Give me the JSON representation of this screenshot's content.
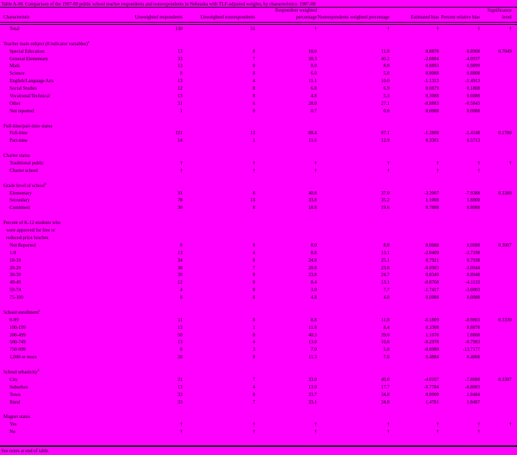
{
  "colors": {
    "background": "#FF00FF",
    "text": "#000000"
  },
  "title": "Table A-88. Comparison of the 1987-88 public school teacher respondents and nonrespondents in Nebraska with TLF-adjusted weights, by characteristics: 1987-88",
  "footer": "See notes at end of table.",
  "columns": [
    "Characteristic",
    "Unweighted respondents",
    "Unweighted nonrespondents",
    "Respondent weighted percentage",
    "Nonrespondents weighted percentage",
    "Estimated bias",
    "Percent relative bias",
    "Significance level"
  ],
  "total_row": {
    "label": "Total",
    "cells": [
      "130",
      "31",
      "†",
      "†",
      "†",
      "†",
      "†"
    ]
  },
  "sections": [
    {
      "header_lines": [
        "Teacher main subject (8 indicator variables)"
      ],
      "sup": "a",
      "rows": [
        {
          "label": "Special Education",
          "cells": [
            "13",
            "8",
            "10.0",
            "11.8",
            "0.8878",
            "0.8908",
            "0.7049"
          ]
        },
        {
          "label": "General Elementary",
          "cells": [
            "33",
            "7",
            "38.3",
            "40.2",
            "-2.0884",
            "-4.0937",
            ""
          ]
        },
        {
          "label": "Math",
          "cells": [
            "13",
            "8",
            "8.0",
            "8.8",
            "0.8893",
            "0.9899",
            ""
          ]
        },
        {
          "label": "Science",
          "cells": [
            "8",
            "8",
            "6.0",
            "5.8",
            "0.8088",
            "0.8808",
            ""
          ]
        },
        {
          "label": "English/Language Arts",
          "cells": [
            "13",
            "4",
            "11.1",
            "10.0",
            "-1.1313",
            "-1.4913",
            ""
          ]
        },
        {
          "label": "Social Studies",
          "cells": [
            "12",
            "8",
            "6.8",
            "6.9",
            "0.0879",
            "0.1808",
            ""
          ]
        },
        {
          "label": "Vocational/Technical",
          "cells": [
            "13",
            "8",
            "4.8",
            "5.3",
            "0.3088",
            "0.6088",
            ""
          ]
        },
        {
          "label": "Other",
          "cells": [
            "31",
            "6",
            "28.0",
            "27.1",
            "-0.8883",
            "-0.5843",
            ""
          ]
        },
        {
          "label": "Not reported",
          "cells": [
            "1",
            "0",
            "0.7",
            "0.8",
            "0.0088",
            "0.0088",
            ""
          ]
        }
      ]
    },
    {
      "header_lines": [
        "Full-time/part-time status"
      ],
      "sup": "",
      "rows": [
        {
          "label": "Full-time",
          "cells": [
            "121",
            "13",
            "88.4",
            "87.1",
            "-1.2808",
            "-1.4148",
            "0.1780"
          ]
        },
        {
          "label": "Part-time",
          "cells": [
            "14",
            "1",
            "11.6",
            "12.9",
            "0.3301",
            "0.5713",
            ""
          ]
        }
      ]
    },
    {
      "header_lines": [
        "Charter status"
      ],
      "sup": "",
      "rows": [
        {
          "label": "Traditional public",
          "cells": [
            "†",
            "†",
            "†",
            "†",
            "†",
            "†",
            "†"
          ]
        },
        {
          "label": "Charter school",
          "cells": [
            "†",
            "†",
            "†",
            "†",
            "†",
            "†",
            ""
          ]
        }
      ]
    },
    {
      "header_lines": [
        "Grade level of school"
      ],
      "sup": "b",
      "rows": [
        {
          "label": "Elementary",
          "cells": [
            "31",
            "8",
            "40.8",
            "37.0",
            "-3.2007",
            "-7.9388",
            "0.3380"
          ]
        },
        {
          "label": "Secondary",
          "cells": [
            "78",
            "13",
            "33.8",
            "35.2",
            "1.1008",
            "1.8800",
            ""
          ]
        },
        {
          "label": "Combined",
          "cells": [
            "30",
            "8",
            "18.8",
            "19.6",
            "0.7888",
            "0.8088",
            ""
          ]
        }
      ]
    },
    {
      "header_lines": [
        "Percent of K-12 students who",
        "were approved for free or",
        "reduced-price lunches"
      ],
      "sup": "",
      "rows": [
        {
          "label": "Not Reported",
          "cells": [
            "8",
            "8",
            "8.0",
            "8.8",
            "0.0088",
            "0.0088",
            "0.3007"
          ]
        },
        {
          "label": "1-9",
          "cells": [
            "13",
            "4",
            "8.8",
            "13.1",
            "-2.0409",
            "-3.7198",
            ""
          ]
        },
        {
          "label": "10-19",
          "cells": [
            "34",
            "8",
            "24.8",
            "25.1",
            "0.7921",
            "0.7938",
            ""
          ]
        },
        {
          "label": "20-29",
          "cells": [
            "30",
            "7",
            "20.8",
            "23.8",
            "-0.8983",
            "-3.0044",
            ""
          ]
        },
        {
          "label": "30-39",
          "cells": [
            "30",
            "8",
            "23.8",
            "24.7",
            "0.8349",
            "0.8948",
            ""
          ]
        },
        {
          "label": "40-49",
          "cells": [
            "12",
            "8",
            "8.4",
            "13.1",
            "-0.8768",
            "-4.1133",
            ""
          ]
        },
        {
          "label": "50-74",
          "cells": [
            "4",
            "8",
            "3.0",
            "7.7",
            "-1.7417",
            "-3.0003",
            ""
          ]
        },
        {
          "label": "75-100",
          "cells": [
            "8",
            "8",
            "4.8",
            "4.8",
            "0.0088",
            "0.0088",
            ""
          ]
        }
      ]
    },
    {
      "header_lines": [
        "School enrollment"
      ],
      "sup": "c",
      "rows": [
        {
          "label": "0-99",
          "cells": [
            "11",
            "8",
            "8.8",
            "11.8",
            "-0.1809",
            "-0.9803",
            "0.3330"
          ]
        },
        {
          "label": "100-199",
          "cells": [
            "13",
            "1",
            "11.8",
            "8.4",
            "0.3308",
            "0.8878",
            ""
          ]
        },
        {
          "label": "200-499",
          "cells": [
            "50",
            "8",
            "40.3",
            "39.0",
            "1.1078",
            "1.8808",
            ""
          ]
        },
        {
          "label": "500-749",
          "cells": [
            "13",
            "4",
            "13.0",
            "10.8",
            "-0.2978",
            "-0.7983",
            ""
          ]
        },
        {
          "label": "750-999",
          "cells": [
            "8",
            "3",
            "7.0",
            "5.8",
            "-0.8980",
            "-13.7177",
            ""
          ]
        },
        {
          "label": "1,000 or more",
          "cells": [
            "38",
            "8",
            "11.3",
            "7.8",
            "0.4884",
            "0.4808",
            ""
          ]
        }
      ]
    },
    {
      "header_lines": [
        "School urbanicity"
      ],
      "sup": "d",
      "rows": [
        {
          "label": "City",
          "cells": [
            "31",
            "7",
            "33.0",
            "40.8",
            "-4.0107",
            "-7.8088",
            "0.3387"
          ]
        },
        {
          "label": "Suburban",
          "cells": [
            "13",
            "4",
            "13.0",
            "17.7",
            "-0.7784",
            "-0.8083",
            ""
          ]
        },
        {
          "label": "Town",
          "cells": [
            "33",
            "8",
            "33.7",
            "34.8",
            "0.8000",
            "1.8484",
            ""
          ]
        },
        {
          "label": "Rural",
          "cells": [
            "33",
            "7",
            "33.1",
            "34.8",
            "1.4781",
            "1.8487",
            ""
          ]
        }
      ]
    },
    {
      "header_lines": [
        "Magnet status"
      ],
      "sup": "",
      "rows": [
        {
          "label": "Yes",
          "cells": [
            "†",
            "†",
            "†",
            "†",
            "†",
            "†",
            "†"
          ]
        },
        {
          "label": "No",
          "cells": [
            "†",
            "†",
            "†",
            "†",
            "†",
            "†",
            ""
          ]
        }
      ]
    }
  ]
}
